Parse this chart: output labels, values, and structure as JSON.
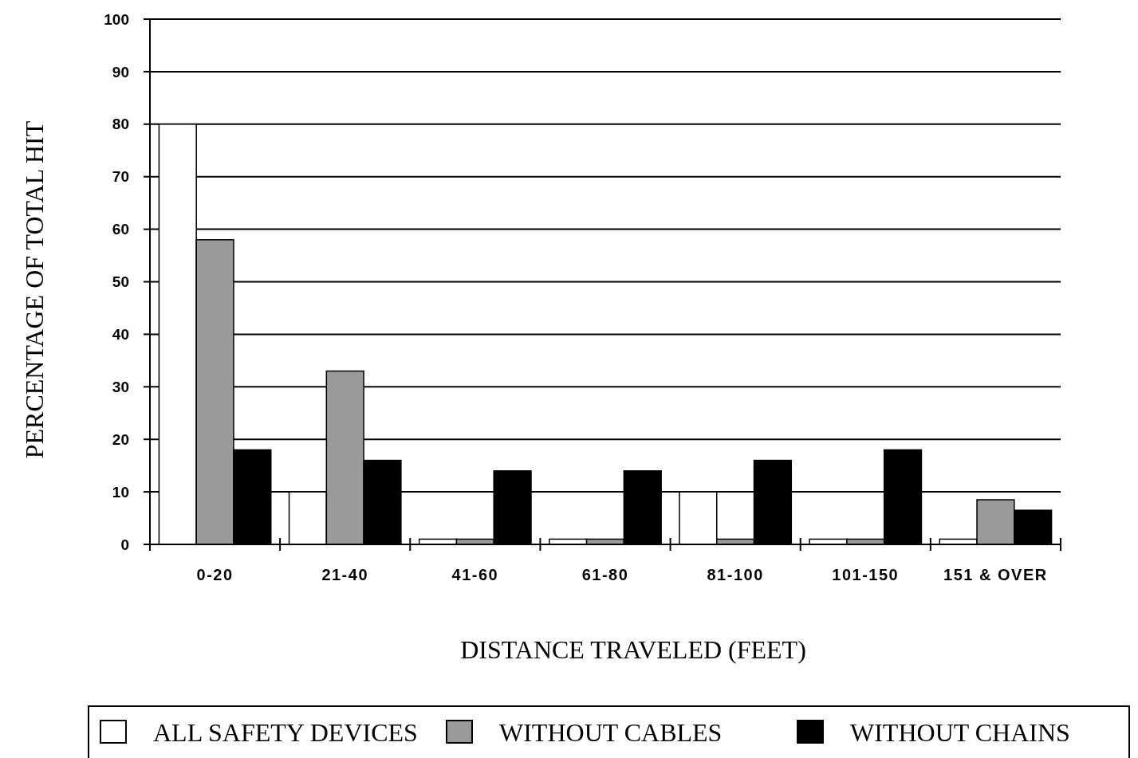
{
  "chart_data": {
    "type": "bar",
    "xlabel": "DISTANCE TRAVELED (FEET)",
    "ylabel": "PERCENTAGE OF TOTAL HIT",
    "categories": [
      "0-20",
      "21-40",
      "41-60",
      "61-80",
      "81-100",
      "101-150",
      "151 & OVER"
    ],
    "series": [
      {
        "name": "ALL SAFETY DEVICES",
        "color": "#ffffff",
        "values": [
          80,
          10,
          1,
          1,
          10,
          1,
          1
        ]
      },
      {
        "name": "WITHOUT CABLES",
        "color": "#9a9a9a",
        "values": [
          58,
          33,
          1,
          1,
          1,
          1,
          8.5
        ]
      },
      {
        "name": "WITHOUT CHAINS",
        "color": "#000000",
        "values": [
          18,
          16,
          14,
          14,
          16,
          18,
          6.5
        ]
      }
    ],
    "ylim": [
      0,
      100
    ],
    "yticks": [
      0,
      10,
      20,
      30,
      40,
      50,
      60,
      70,
      80,
      90,
      100
    ],
    "grid": "y",
    "legend": "bottom"
  }
}
